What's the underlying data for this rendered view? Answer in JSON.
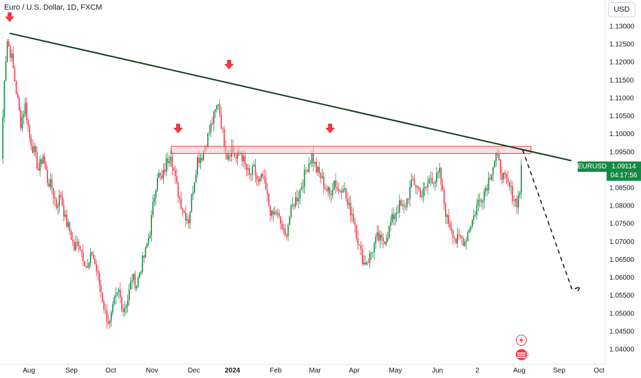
{
  "header": {
    "title": "Euro / U.S. Dollar, 1D, FXCM"
  },
  "currency_button": "USD",
  "price_tag": {
    "symbol": "EURUSD",
    "price": "1.09114",
    "countdown": "04:17:56"
  },
  "chart_data": {
    "type": "candlestick",
    "title": "Euro / U.S. Dollar, 1D, FXCM",
    "y_ticks": [
      1.13,
      1.125,
      1.12,
      1.115,
      1.11,
      1.105,
      1.1,
      1.095,
      1.09,
      1.085,
      1.08,
      1.075,
      1.07,
      1.065,
      1.06,
      1.055,
      1.05,
      1.045,
      1.04
    ],
    "y_tick_labels": [
      "1.13000",
      "1.12500",
      "1.12000",
      "1.11500",
      "1.11000",
      "1.10500",
      "1.10000",
      "1.09500",
      "1.09000",
      "1.08500",
      "1.08000",
      "1.07500",
      "1.07000",
      "1.06500",
      "1.06000",
      "1.05500",
      "1.05000",
      "1.04500",
      "1.04000"
    ],
    "ylim": [
      1.0385,
      1.1335
    ],
    "x_tick_labels": [
      "Aug",
      "Sep",
      "Oct",
      "Nov",
      "Dec",
      "2024",
      "Feb",
      "Mar",
      "Apr",
      "May",
      "Jun",
      "2",
      "Aug",
      "Sep",
      "Oct"
    ],
    "path_points": [
      [
        0,
        1.093
      ],
      [
        2,
        1.116
      ],
      [
        4,
        1.126
      ],
      [
        7,
        1.121
      ],
      [
        10,
        1.112
      ],
      [
        13,
        1.103
      ],
      [
        16,
        1.108
      ],
      [
        19,
        1.099
      ],
      [
        22,
        1.095
      ],
      [
        25,
        1.09
      ],
      [
        28,
        1.094
      ],
      [
        31,
        1.087
      ],
      [
        34,
        1.085
      ],
      [
        37,
        1.08
      ],
      [
        40,
        1.083
      ],
      [
        43,
        1.076
      ],
      [
        46,
        1.073
      ],
      [
        49,
        1.068
      ],
      [
        52,
        1.07
      ],
      [
        55,
        1.066
      ],
      [
        58,
        1.062
      ],
      [
        61,
        1.067
      ],
      [
        64,
        1.062
      ],
      [
        67,
        1.056
      ],
      [
        70,
        1.05
      ],
      [
        73,
        1.047
      ],
      [
        76,
        1.053
      ],
      [
        79,
        1.056
      ],
      [
        82,
        1.051
      ],
      [
        85,
        1.054
      ],
      [
        88,
        1.06
      ],
      [
        91,
        1.058
      ],
      [
        94,
        1.063
      ],
      [
        97,
        1.067
      ],
      [
        100,
        1.073
      ],
      [
        103,
        1.083
      ],
      [
        105,
        1.089
      ],
      [
        108,
        1.087
      ],
      [
        111,
        1.092
      ],
      [
        114,
        1.095
      ],
      [
        117,
        1.087
      ],
      [
        120,
        1.082
      ],
      [
        123,
        1.078
      ],
      [
        126,
        1.076
      ],
      [
        129,
        1.085
      ],
      [
        132,
        1.093
      ],
      [
        135,
        1.094
      ],
      [
        138,
        1.098
      ],
      [
        141,
        1.102
      ],
      [
        144,
        1.106
      ],
      [
        146,
        1.109
      ],
      [
        149,
        1.1
      ],
      [
        152,
        1.094
      ],
      [
        155,
        1.096
      ],
      [
        158,
        1.093
      ],
      [
        161,
        1.095
      ],
      [
        164,
        1.091
      ],
      [
        167,
        1.088
      ],
      [
        170,
        1.09
      ],
      [
        173,
        1.086
      ],
      [
        176,
        1.088
      ],
      [
        179,
        1.082
      ],
      [
        182,
        1.077
      ],
      [
        185,
        1.078
      ],
      [
        188,
        1.075
      ],
      [
        191,
        1.071
      ],
      [
        194,
        1.077
      ],
      [
        197,
        1.081
      ],
      [
        200,
        1.083
      ],
      [
        203,
        1.087
      ],
      [
        206,
        1.091
      ],
      [
        209,
        1.094
      ],
      [
        212,
        1.09
      ],
      [
        215,
        1.088
      ],
      [
        218,
        1.085
      ],
      [
        221,
        1.083
      ],
      [
        224,
        1.087
      ],
      [
        227,
        1.084
      ],
      [
        230,
        1.086
      ],
      [
        233,
        1.08
      ],
      [
        236,
        1.078
      ],
      [
        238,
        1.075
      ],
      [
        241,
        1.068
      ],
      [
        244,
        1.064
      ],
      [
        247,
        1.065
      ],
      [
        250,
        1.068
      ],
      [
        253,
        1.071
      ],
      [
        256,
        1.07
      ],
      [
        259,
        1.071
      ],
      [
        262,
        1.075
      ],
      [
        265,
        1.078
      ],
      [
        268,
        1.08
      ],
      [
        271,
        1.079
      ],
      [
        274,
        1.083
      ],
      [
        277,
        1.087
      ],
      [
        280,
        1.085
      ],
      [
        283,
        1.083
      ],
      [
        286,
        1.085
      ],
      [
        289,
        1.088
      ],
      [
        292,
        1.087
      ],
      [
        295,
        1.089
      ],
      [
        297,
        1.083
      ],
      [
        300,
        1.076
      ],
      [
        303,
        1.074
      ],
      [
        306,
        1.07
      ],
      [
        309,
        1.071
      ],
      [
        312,
        1.07
      ],
      [
        315,
        1.074
      ],
      [
        318,
        1.077
      ],
      [
        321,
        1.081
      ],
      [
        324,
        1.083
      ],
      [
        327,
        1.086
      ],
      [
        330,
        1.09
      ],
      [
        333,
        1.094
      ],
      [
        336,
        1.09
      ],
      [
        339,
        1.087
      ],
      [
        342,
        1.085
      ],
      [
        345,
        1.082
      ],
      [
        347,
        1.081
      ],
      [
        349,
        1.084
      ],
      [
        350,
        1.092
      ]
    ],
    "trendline": [
      [
        1.128,
        "start"
      ],
      [
        1.0925,
        "end"
      ]
    ],
    "resistance_zone": [
      1.0965,
      1.0945
    ],
    "arrows": [
      "swing-high-1",
      "swing-high-2",
      "swing-high-3",
      "swing-high-4"
    ],
    "projection": [
      1.0955,
      1.0555
    ]
  },
  "colors": {
    "up": "#138a43",
    "down": "#f23645",
    "trend": "#0b3d1a",
    "zone_fill": "#f7c7c9",
    "zone_border": "#f23645"
  },
  "icons": [
    "lightning-icon",
    "flags-icon"
  ]
}
